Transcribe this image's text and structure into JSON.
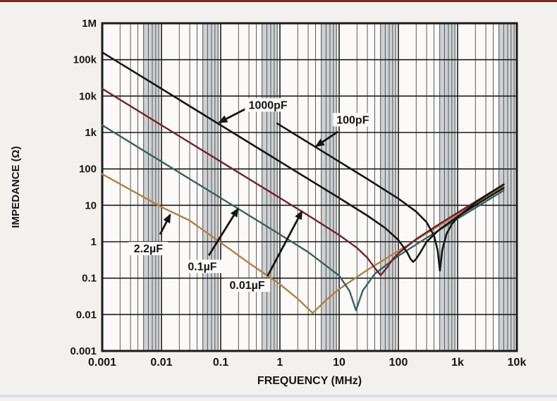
{
  "page": {
    "background": "#f3f1ee",
    "plot_background": "#fbfaf8",
    "top_edge_color": "#7b2a20",
    "bottom_edge_color": "#d9e0eb",
    "grid_major_color": "#1b1b1b",
    "grid_minor_color": "#4a4a4a",
    "grid_band_color": "#a9aeb5",
    "text_color": "#161616"
  },
  "chart_data": {
    "type": "line",
    "title": "",
    "xlabel": "FREQUENCY (MHz)",
    "ylabel": "IMPEDANCE (Ω)",
    "x_scale": "log",
    "y_scale": "log",
    "xlim": [
      0.001,
      10000
    ],
    "ylim": [
      0.001,
      1000000
    ],
    "grid": {
      "x_minor": true,
      "y_minor": false,
      "x_minor_band": [
        4.9,
        9.3
      ],
      "legend": "none"
    },
    "x_ticks": [
      {
        "label": "0.001",
        "v": 0.001
      },
      {
        "label": "0.01",
        "v": 0.01
      },
      {
        "label": "0.1",
        "v": 0.1
      },
      {
        "label": "1",
        "v": 1
      },
      {
        "label": "10",
        "v": 10
      },
      {
        "label": "100",
        "v": 100
      },
      {
        "label": "1k",
        "v": 1000
      },
      {
        "label": "10k",
        "v": 10000
      }
    ],
    "y_ticks": [
      {
        "label": "1M",
        "v": 1000000
      },
      {
        "label": "100k",
        "v": 100000
      },
      {
        "label": "10k",
        "v": 10000
      },
      {
        "label": "1k",
        "v": 1000
      },
      {
        "label": "100",
        "v": 100
      },
      {
        "label": "10",
        "v": 10
      },
      {
        "label": "1",
        "v": 1
      },
      {
        "label": "0.1",
        "v": 0.1
      },
      {
        "label": "0.01",
        "v": 0.01
      },
      {
        "label": "0.001",
        "v": 0.001
      }
    ],
    "series": [
      {
        "name": "2.2uF",
        "display": "2.2µF",
        "color": "#b3803f",
        "width": 2.4,
        "points": [
          [
            0.001,
            72
          ],
          [
            0.01,
            9.0
          ],
          [
            0.03,
            3.8
          ],
          [
            0.1,
            0.95
          ],
          [
            0.3,
            0.26
          ],
          [
            1,
            0.068
          ],
          [
            2,
            0.027
          ],
          [
            3.58,
            0.011
          ],
          [
            6,
            0.025
          ],
          [
            10,
            0.05
          ],
          [
            30,
            0.168
          ],
          [
            100,
            0.56
          ],
          [
            300,
            1.7
          ],
          [
            1000,
            5.65
          ],
          [
            3000,
            17.0
          ],
          [
            6000,
            33.9
          ]
        ]
      },
      {
        "name": "0.1uF",
        "display": "0.1µF",
        "color": "#36635e",
        "width": 2.4,
        "points": [
          [
            0.001,
            1591
          ],
          [
            0.01,
            159
          ],
          [
            0.1,
            15.9
          ],
          [
            1,
            1.59
          ],
          [
            3,
            0.52
          ],
          [
            10,
            0.117
          ],
          [
            15,
            0.044
          ],
          [
            19.3,
            0.013
          ],
          [
            25,
            0.045
          ],
          [
            40,
            0.132
          ],
          [
            100,
            0.41
          ],
          [
            300,
            1.28
          ],
          [
            1000,
            4.27
          ],
          [
            3000,
            12.8
          ],
          [
            6000,
            25.6
          ]
        ]
      },
      {
        "name": "0.01uF",
        "display": "0.01µF",
        "color": "#73212e",
        "width": 2.4,
        "points": [
          [
            0.001,
            15900
          ],
          [
            0.01,
            1590
          ],
          [
            0.1,
            159
          ],
          [
            1,
            15.9
          ],
          [
            3,
            5.3
          ],
          [
            10,
            1.53
          ],
          [
            20,
            0.68
          ],
          [
            30,
            0.36
          ],
          [
            40,
            0.19
          ],
          [
            50.3,
            0.12
          ],
          [
            65,
            0.2
          ],
          [
            80,
            0.33
          ],
          [
            100,
            0.48
          ],
          [
            200,
            1.18
          ],
          [
            500,
            3.11
          ],
          [
            1000,
            6.27
          ],
          [
            3000,
            18.8
          ],
          [
            6000,
            37.7
          ]
        ]
      },
      {
        "name": "1000pF",
        "display": "1000pF",
        "color": "#161616",
        "width": 2.6,
        "points": [
          [
            0.001,
            159000
          ],
          [
            0.01,
            15900
          ],
          [
            0.1,
            1590
          ],
          [
            1,
            159
          ],
          [
            10,
            15.9
          ],
          [
            30,
            5.2
          ],
          [
            60,
            2.37
          ],
          [
            100,
            1.12
          ],
          [
            140,
            0.52
          ],
          [
            160,
            0.34
          ],
          [
            178,
            0.28
          ],
          [
            200,
            0.34
          ],
          [
            230,
            0.48
          ],
          [
            300,
            1.0
          ],
          [
            500,
            2.21
          ],
          [
            1000,
            4.88
          ],
          [
            2000,
            10.0
          ],
          [
            4000,
            20.1
          ],
          [
            6000,
            30.1
          ]
        ]
      },
      {
        "name": "100pF",
        "display": "100pF",
        "color": "#161616",
        "width": 2.6,
        "points": [
          [
            0.9,
            1768
          ],
          [
            2,
            796
          ],
          [
            5,
            318
          ],
          [
            10,
            159
          ],
          [
            30,
            52.9
          ],
          [
            100,
            15.3
          ],
          [
            200,
            6.7
          ],
          [
            300,
            3.42
          ],
          [
            400,
            1.47
          ],
          [
            460,
            0.59
          ],
          [
            503,
            0.16
          ],
          [
            550,
            0.58
          ],
          [
            650,
            1.64
          ],
          [
            800,
            3.04
          ],
          [
            1000,
            4.69
          ],
          [
            2000,
            11.8
          ],
          [
            4000,
            24.7
          ],
          [
            6000,
            37.4
          ]
        ]
      }
    ],
    "annotations": [
      {
        "text": "1000pF",
        "label_at": [
          0.63,
          5700
        ],
        "arrow_from": [
          0.26,
          4400
        ],
        "arrow_to": [
          0.095,
          1900
        ]
      },
      {
        "text": "100pF",
        "label_at": [
          17,
          2250
        ],
        "arrow_from": [
          9.5,
          1050
        ],
        "arrow_to": [
          4.1,
          420
        ]
      },
      {
        "text": "2.2µF",
        "label_at": [
          0.006,
          0.65
        ],
        "arrow_from": [
          0.0095,
          1.6
        ],
        "arrow_to": [
          0.014,
          5.5
        ]
      },
      {
        "text": "0.1µF",
        "label_at": [
          0.049,
          0.21
        ],
        "arrow_from": [
          0.063,
          0.42
        ],
        "arrow_to": [
          0.195,
          8
        ]
      },
      {
        "text": "0.01µF",
        "label_at": [
          0.28,
          0.064
        ],
        "arrow_from": [
          0.62,
          0.115
        ],
        "arrow_to": [
          2.35,
          6.8
        ]
      }
    ]
  }
}
